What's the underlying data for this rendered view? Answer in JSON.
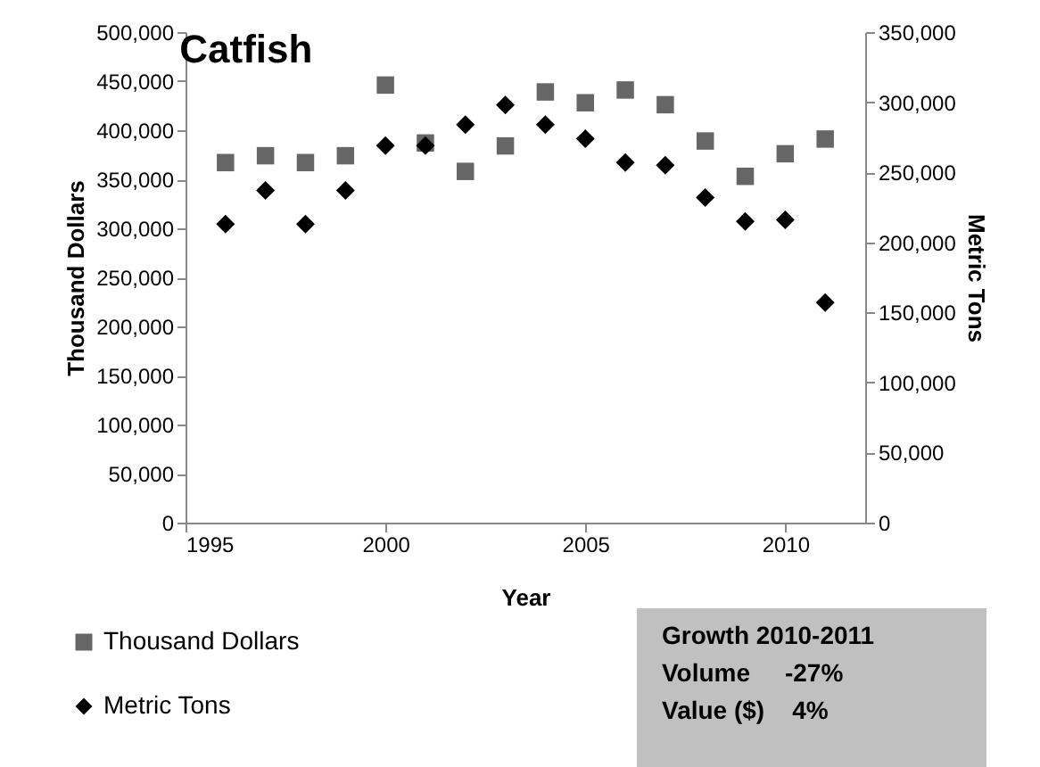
{
  "chart_data": {
    "type": "scatter",
    "title": "Catfish",
    "xlabel": "Year",
    "ylabel": "Thousand Dollars",
    "y2label": "Metric Tons",
    "x": [
      1996,
      1997,
      1998,
      1999,
      2000,
      2001,
      2002,
      2003,
      2004,
      2005,
      2006,
      2007,
      2008,
      2009,
      2010,
      2011
    ],
    "series": [
      {
        "name": "Thousand Dollars",
        "color": "#666666",
        "marker": "square",
        "values": [
          367000,
          374000,
          367000,
          374000,
          446000,
          387000,
          358000,
          384000,
          439000,
          428000,
          441000,
          426000,
          389000,
          353000,
          376000,
          391000
        ]
      },
      {
        "name": "Metric Tons",
        "color": "#000000",
        "marker": "diamond",
        "axis": "y2",
        "values": [
          213000,
          237000,
          213000,
          237000,
          269000,
          269000,
          284000,
          298000,
          284000,
          274000,
          257000,
          255000,
          232000,
          215000,
          216000,
          157000
        ]
      }
    ],
    "xlim": [
      1995,
      2012
    ],
    "xticks": [
      1995,
      2000,
      2005,
      2010
    ],
    "ylim": [
      0,
      500000
    ],
    "yticks": [
      0,
      {
        "value": 50000,
        "label": "50,000"
      },
      {
        "value": 100000,
        "label": "100,000"
      },
      {
        "value": 150000,
        "label": "150,000"
      },
      {
        "value": 200000,
        "label": "200,000"
      },
      {
        "value": 250000,
        "label": "250,000"
      },
      {
        "value": 300000,
        "label": "300,000"
      },
      {
        "value": 350000,
        "label": "350,000"
      },
      {
        "value": 400000,
        "label": "400,000"
      },
      {
        "value": 450000,
        "label": "450,000"
      },
      {
        "value": 500000,
        "label": "500,000"
      }
    ],
    "y2lim": [
      0,
      350000
    ],
    "y2ticks": [
      0,
      {
        "value": 50000,
        "label": "50,000"
      },
      {
        "value": 100000,
        "label": "100,000"
      },
      {
        "value": 150000,
        "label": "150,000"
      },
      {
        "value": 200000,
        "label": "200,000"
      },
      {
        "value": 250000,
        "label": "250,000"
      },
      {
        "value": 300000,
        "label": "300,000"
      },
      {
        "value": 350000,
        "label": "350,000"
      }
    ],
    "grid": false,
    "legend": "bottom left",
    "annotations": [
      "Growth 2010-2011",
      "Volume     -27%",
      "Value ($)    4%"
    ]
  }
}
